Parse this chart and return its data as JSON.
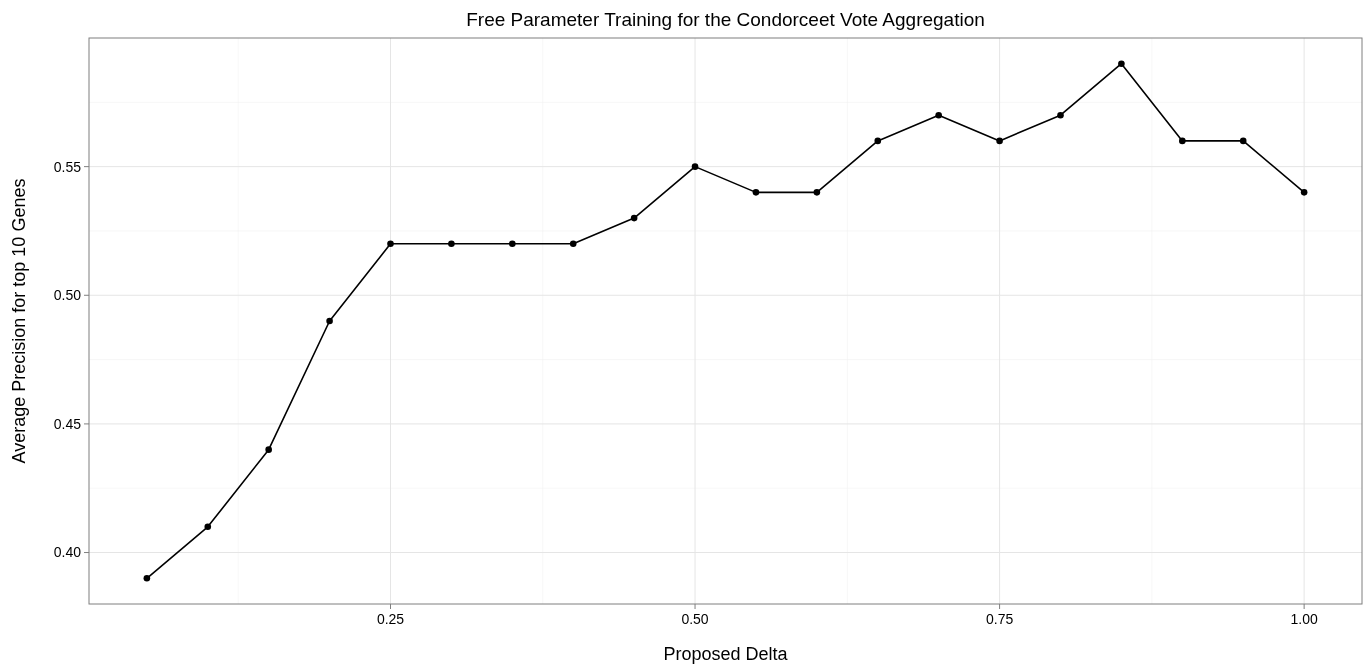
{
  "chart_data": {
    "type": "line",
    "title": "Free Parameter Training for the Condorceet Vote Aggregation",
    "xlabel": "Proposed Delta",
    "ylabel": "Average Precision for top 10 Genes",
    "x": [
      0.05,
      0.1,
      0.15,
      0.2,
      0.25,
      0.3,
      0.35,
      0.4,
      0.45,
      0.5,
      0.55,
      0.6,
      0.65,
      0.7,
      0.75,
      0.8,
      0.85,
      0.9,
      0.95,
      1.0
    ],
    "series": [
      {
        "color": "#000000",
        "values": [
          0.39,
          0.41,
          0.44,
          0.49,
          0.52,
          0.52,
          0.52,
          0.52,
          0.53,
          0.55,
          0.54,
          0.54,
          0.56,
          0.57,
          0.56,
          0.57,
          0.59,
          0.56,
          0.56,
          0.54
        ]
      }
    ],
    "xlim": [
      0.0025,
      1.0475
    ],
    "xticks": [
      {
        "value": 0.25,
        "label": "0.25"
      },
      {
        "value": 0.5,
        "label": "0.50"
      },
      {
        "value": 0.75,
        "label": "0.75"
      },
      {
        "value": 1.0,
        "label": "1.00"
      }
    ],
    "ylim": [
      0.38,
      0.6
    ],
    "yticks": [
      {
        "value": 0.4,
        "label": "0.40"
      },
      {
        "value": 0.45,
        "label": "0.45"
      },
      {
        "value": 0.5,
        "label": "0.50"
      },
      {
        "value": 0.55,
        "label": "0.55"
      }
    ],
    "grid": true,
    "marker": "circle",
    "line_style": "solid"
  }
}
